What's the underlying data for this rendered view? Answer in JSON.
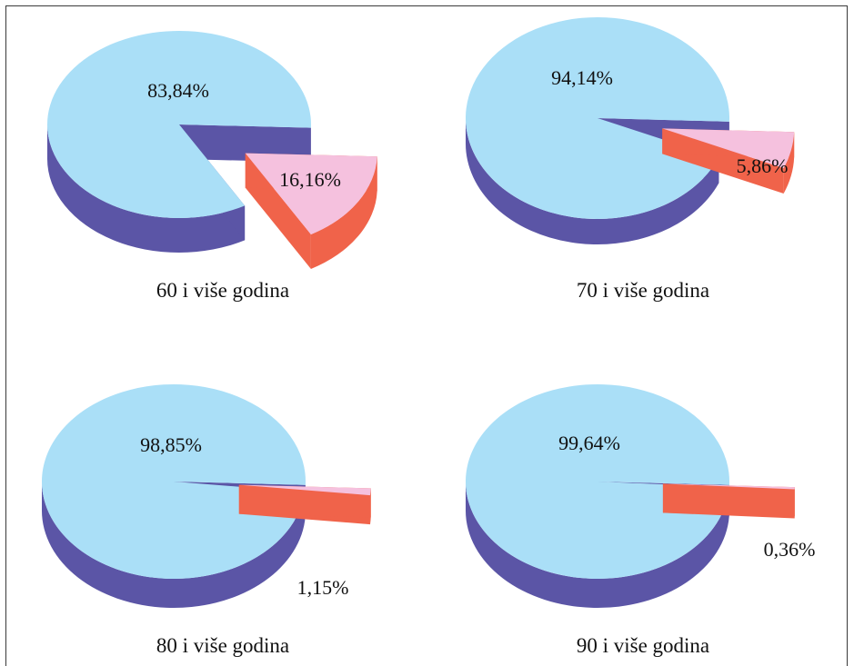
{
  "colors": {
    "main_top": "#aadff7",
    "main_side": "#5b55a6",
    "slice_top": "#f5c1de",
    "slice_side": "#f0634a",
    "frame": "#3a3a3a"
  },
  "chart_data": [
    {
      "type": "pie",
      "title": "60 i više godina",
      "slices": [
        {
          "label": "83,84%",
          "value": 83.84
        },
        {
          "label": "16,16%",
          "value": 16.16
        }
      ]
    },
    {
      "type": "pie",
      "title": "70 i više godina",
      "slices": [
        {
          "label": "94,14%",
          "value": 94.14
        },
        {
          "label": "5,86%",
          "value": 5.86
        }
      ]
    },
    {
      "type": "pie",
      "title": "80 i više godina",
      "slices": [
        {
          "label": "98,85%",
          "value": 98.85
        },
        {
          "label": "1,15%",
          "value": 1.15
        }
      ]
    },
    {
      "type": "pie",
      "title": "90 i više godina",
      "slices": [
        {
          "label": "99,64%",
          "value": 99.64
        },
        {
          "label": "0,36%",
          "value": 0.36
        }
      ]
    }
  ]
}
